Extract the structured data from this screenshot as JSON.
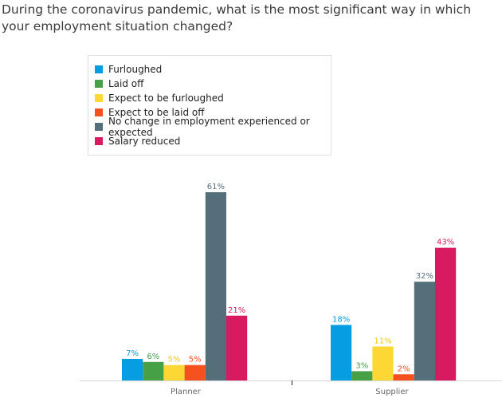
{
  "title": "During the coronavirus pandemic, what is the most significant way in which your employment situation changed?",
  "chart_data": {
    "type": "bar",
    "categories": [
      "Planner",
      "Supplier"
    ],
    "series": [
      {
        "name": "Furloughed",
        "color": "#069de3",
        "values": [
          7,
          18
        ]
      },
      {
        "name": "Laid off",
        "color": "#45a046",
        "values": [
          6,
          3
        ]
      },
      {
        "name": "Expect to be furloughed",
        "color": "#fdd835",
        "values": [
          5,
          11
        ]
      },
      {
        "name": "Expect to be laid off",
        "color": "#f4511e",
        "values": [
          5,
          2
        ]
      },
      {
        "name": "No change in employment experienced or expected",
        "color": "#546e7a",
        "values": [
          61,
          32
        ]
      },
      {
        "name": "Salary reduced",
        "color": "#d81b60",
        "values": [
          21,
          43
        ]
      }
    ],
    "value_suffix": "%",
    "legend_position": "top-left",
    "grid": false,
    "ylim": [
      0,
      61
    ]
  }
}
